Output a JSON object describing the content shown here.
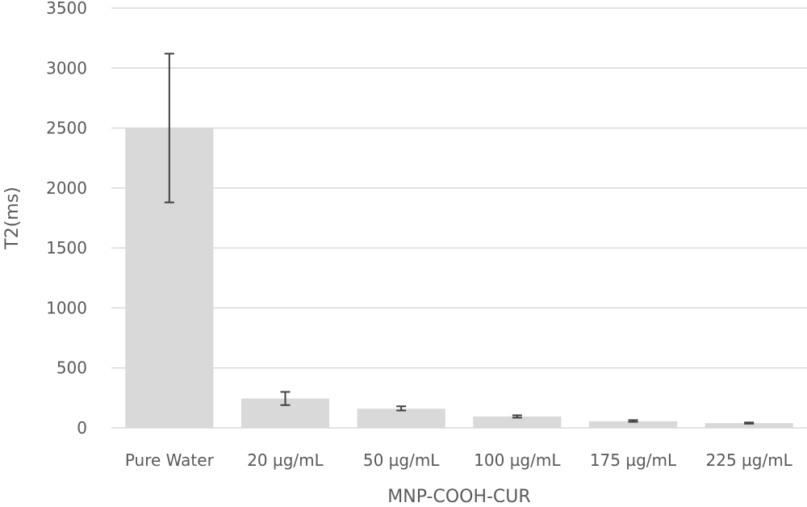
{
  "chart_data": {
    "type": "bar",
    "title": "",
    "xlabel": "MNP-COOH-CUR",
    "ylabel": "T2(ms)",
    "ylim": [
      0,
      3500
    ],
    "yticks": [
      0,
      500,
      1000,
      1500,
      2000,
      2500,
      3000,
      3500
    ],
    "grid": true,
    "legend": "none",
    "categories": [
      "Pure Water",
      "20 µg/mL",
      "50 µg/mL",
      "100 µg/mL",
      "175 µg/mL",
      "225 µg/mL"
    ],
    "values": [
      2500,
      245,
      160,
      95,
      55,
      40
    ],
    "error_low": [
      1880,
      190,
      145,
      85,
      50,
      35
    ],
    "error_high": [
      3120,
      300,
      180,
      105,
      65,
      45
    ],
    "colors": {
      "bar": "#d9d9d9",
      "error": "#404040",
      "grid": "#d9d9d9",
      "text": "#595959"
    }
  }
}
